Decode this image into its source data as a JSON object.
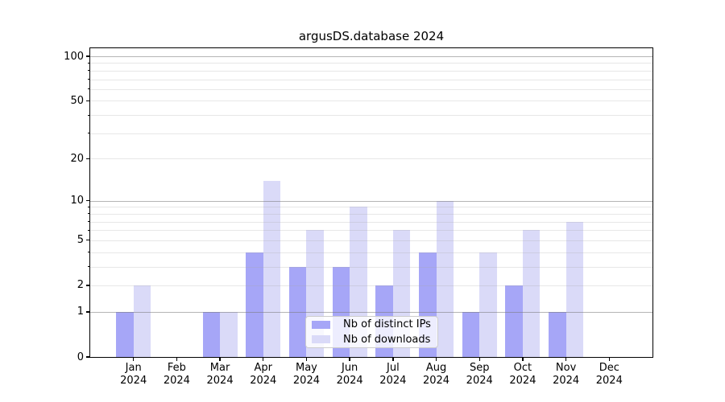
{
  "title": "argusDS.database 2024",
  "chart_data": {
    "type": "bar",
    "title": "argusDS.database 2024",
    "categories": [
      "Jan 2024",
      "Feb 2024",
      "Mar 2024",
      "Apr 2024",
      "May 2024",
      "Jun 2024",
      "Jul 2024",
      "Aug 2024",
      "Sep 2024",
      "Oct 2024",
      "Nov 2024",
      "Dec 2024"
    ],
    "x_tick_month": [
      "Jan",
      "Feb",
      "Mar",
      "Apr",
      "May",
      "Jun",
      "Jul",
      "Aug",
      "Sep",
      "Oct",
      "Nov",
      "Dec"
    ],
    "x_tick_year": "2024",
    "series": [
      {
        "name": "Nb of distinct IPs",
        "color": "#a6a6f7",
        "values": [
          1,
          0,
          1,
          4,
          3,
          3,
          2,
          4,
          1,
          2,
          1,
          0
        ]
      },
      {
        "name": "Nb of downloads",
        "color": "#dadaf8",
        "values": [
          2,
          0,
          1,
          14,
          6,
          9,
          6,
          10,
          4,
          6,
          7,
          0
        ]
      }
    ],
    "y_axis": {
      "scale": "log1p",
      "tick_values": [
        0,
        1,
        2,
        5,
        10,
        20,
        50,
        100
      ],
      "tick_labels": [
        "0",
        "1",
        "2",
        "5",
        "10",
        "20",
        "50",
        "100"
      ],
      "major_gridlines": [
        1,
        10,
        100
      ],
      "minor_gridlines": [
        2,
        3,
        4,
        5,
        6,
        7,
        8,
        9,
        20,
        30,
        40,
        50,
        60,
        70,
        80,
        90
      ],
      "ymin": 0,
      "ymax_visible": 113
    },
    "legend": {
      "position": "lower center",
      "entries": [
        "Nb of distinct IPs",
        "Nb of downloads"
      ]
    },
    "grid": true
  },
  "colors": {
    "grid_major": "#b3b3b3",
    "grid_minor": "#e4e4e4",
    "spine": "#000000",
    "background": "#ffffff"
  }
}
